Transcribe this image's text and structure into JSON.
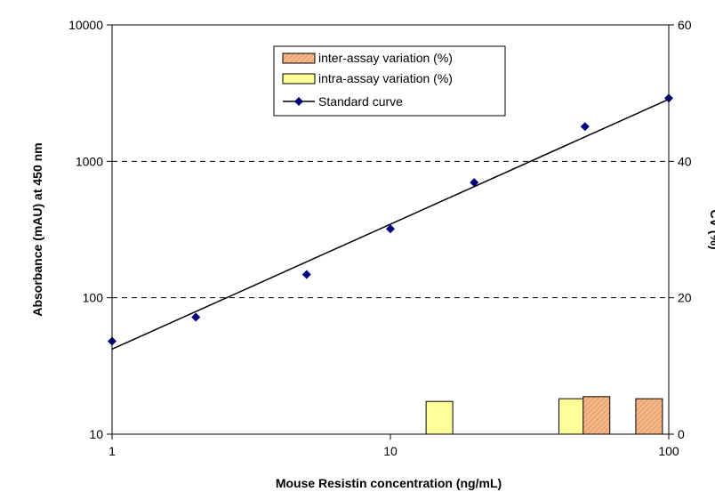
{
  "chart_data": {
    "type": "combo",
    "xlabel": "Mouse Resistin concentration (ng/mL)",
    "ylabel": "Absorbance (mAU) at 450 nm",
    "y2label": "CV (%)",
    "x_scale": "log",
    "y_scale": "log",
    "xlim": [
      1,
      100
    ],
    "ylim": [
      10,
      10000
    ],
    "y2lim": [
      0,
      60
    ],
    "x_ticks": [
      "1",
      "10",
      "100"
    ],
    "y_ticks": [
      "10",
      "100",
      "1000",
      "10000"
    ],
    "y2_ticks": [
      "0",
      "20",
      "40",
      "60"
    ],
    "grid": "horizontal dashed at 100 and 1000",
    "legend_position": "top-center",
    "series": [
      {
        "name": "inter-assay variation (%)",
        "kind": "bar",
        "color": "#f5b88a",
        "hatch": true,
        "points": [
          {
            "x": 55,
            "y": 5.5
          },
          {
            "x": 85,
            "y": 5.2
          }
        ]
      },
      {
        "name": "intra-assay variation (%)",
        "kind": "bar",
        "color": "#ffff99",
        "points": [
          {
            "x": 15,
            "y": 4.8
          },
          {
            "x": 45,
            "y": 5.2
          }
        ]
      },
      {
        "name": "Standard curve",
        "kind": "scatter-fit",
        "color": "#000080",
        "x": [
          1,
          2,
          5,
          10,
          20,
          50,
          100
        ],
        "y": [
          48,
          72,
          148,
          320,
          700,
          1800,
          2900
        ],
        "fit_line": {
          "x": [
            1,
            100
          ],
          "y": [
            42,
            2850
          ]
        }
      }
    ]
  }
}
